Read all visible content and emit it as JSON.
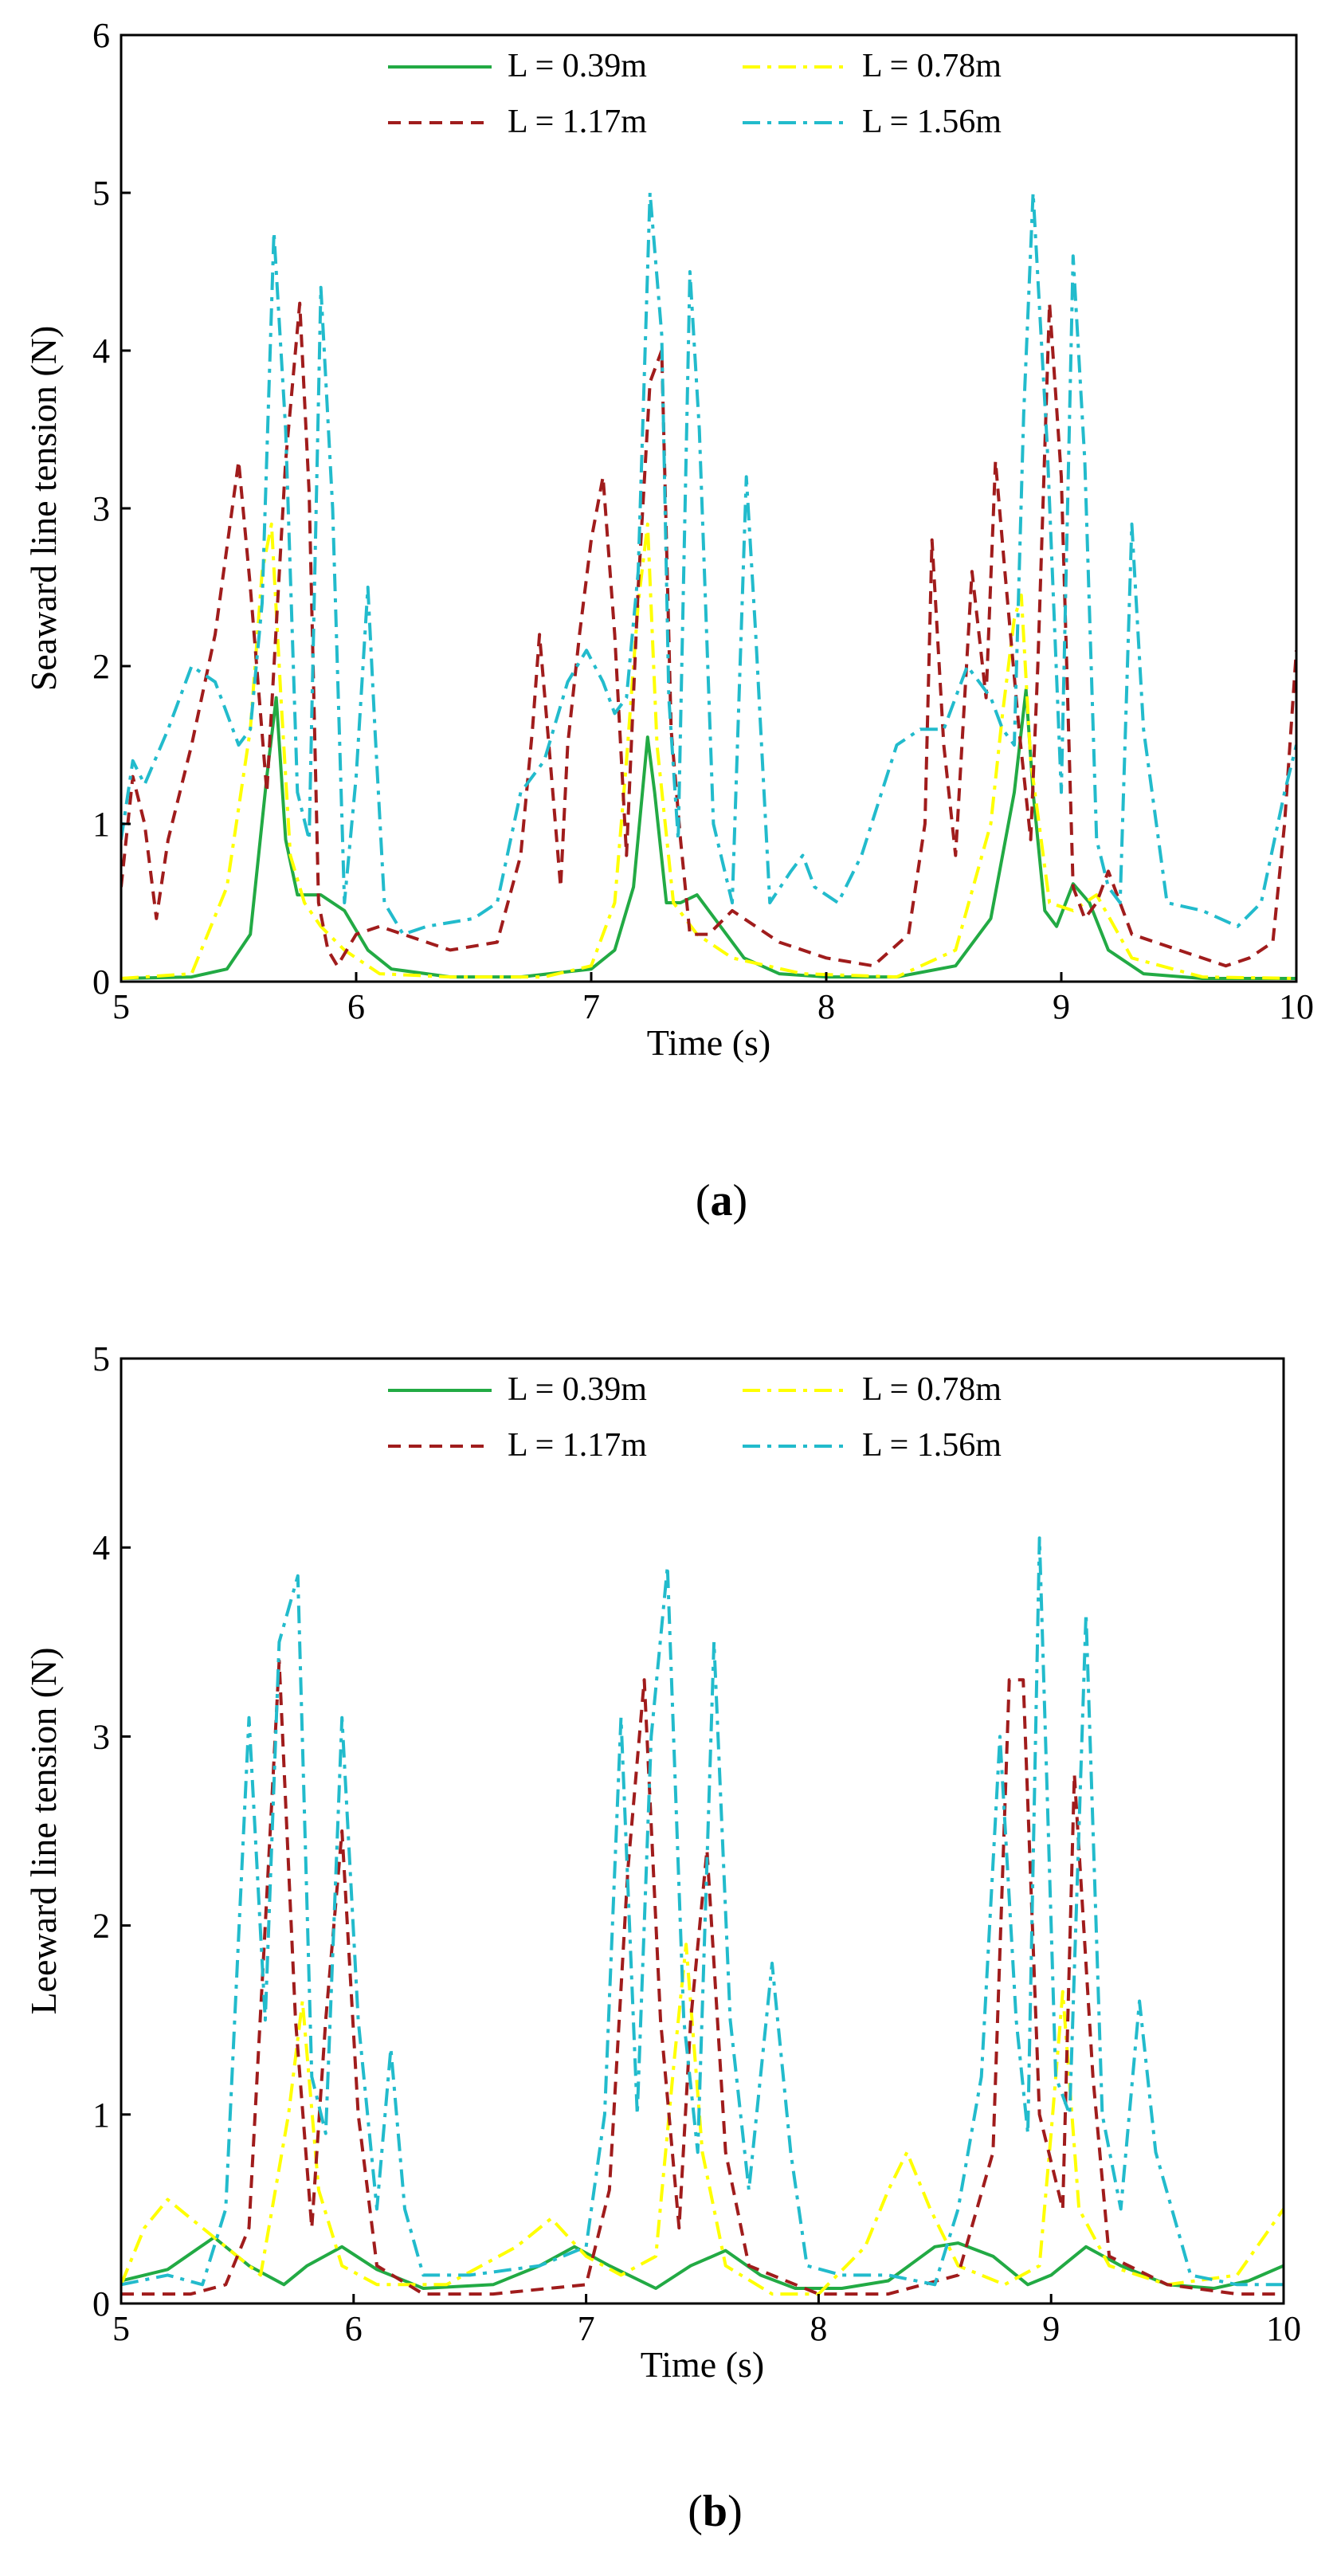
{
  "chart_data": [
    {
      "type": "line",
      "panel_label": "a",
      "xlabel": "Time (s)",
      "ylabel": "Seaward line tension (N)",
      "xlim": [
        5,
        10
      ],
      "ylim": [
        0,
        6
      ],
      "xticks": [
        5,
        6,
        7,
        8,
        9,
        10
      ],
      "yticks": [
        0,
        1,
        2,
        3,
        4,
        5,
        6
      ],
      "legend_position": "top",
      "series": [
        {
          "name": "L = 0.39m",
          "color": "#22aa44",
          "dash": "solid",
          "x": [
            5.0,
            5.3,
            5.45,
            5.55,
            5.62,
            5.66,
            5.7,
            5.75,
            5.85,
            5.95,
            6.05,
            6.15,
            6.4,
            6.7,
            7.0,
            7.1,
            7.18,
            7.24,
            7.27,
            7.32,
            7.38,
            7.45,
            7.55,
            7.65,
            7.8,
            8.0,
            8.3,
            8.55,
            8.7,
            8.8,
            8.85,
            8.88,
            8.93,
            8.98,
            9.05,
            9.12,
            9.2,
            9.35,
            9.6,
            10.0
          ],
          "values": [
            0.02,
            0.03,
            0.08,
            0.3,
            1.3,
            1.8,
            0.9,
            0.55,
            0.55,
            0.45,
            0.2,
            0.08,
            0.03,
            0.03,
            0.08,
            0.2,
            0.6,
            1.55,
            1.2,
            0.5,
            0.5,
            0.55,
            0.35,
            0.15,
            0.05,
            0.03,
            0.03,
            0.1,
            0.4,
            1.2,
            1.85,
            1.2,
            0.45,
            0.35,
            0.62,
            0.5,
            0.2,
            0.05,
            0.02,
            0.02
          ]
        },
        {
          "name": "L = 0.78m",
          "color": "#ffff00",
          "dash": "dashdot",
          "x": [
            5.0,
            5.3,
            5.45,
            5.5,
            5.55,
            5.6,
            5.64,
            5.68,
            5.72,
            5.78,
            5.85,
            5.95,
            6.1,
            6.4,
            6.8,
            7.0,
            7.1,
            7.15,
            7.2,
            7.24,
            7.28,
            7.35,
            7.45,
            7.6,
            7.9,
            8.3,
            8.55,
            8.7,
            8.75,
            8.8,
            8.83,
            8.87,
            8.95,
            9.05,
            9.15,
            9.3,
            9.6,
            10.0
          ],
          "values": [
            0.02,
            0.05,
            0.6,
            1.1,
            1.6,
            2.6,
            2.9,
            1.8,
            0.8,
            0.5,
            0.35,
            0.2,
            0.05,
            0.03,
            0.03,
            0.1,
            0.5,
            1.4,
            2.4,
            2.9,
            1.5,
            0.5,
            0.3,
            0.15,
            0.05,
            0.03,
            0.2,
            1.0,
            1.7,
            2.3,
            2.45,
            1.4,
            0.5,
            0.45,
            0.55,
            0.15,
            0.03,
            0.02
          ]
        },
        {
          "name": "L = 1.17m",
          "color": "#a01c1c",
          "dash": "dashed",
          "x": [
            5.0,
            5.05,
            5.1,
            5.15,
            5.2,
            5.3,
            5.4,
            5.5,
            5.55,
            5.62,
            5.7,
            5.76,
            5.8,
            5.84,
            5.88,
            5.92,
            6.0,
            6.1,
            6.2,
            6.4,
            6.6,
            6.7,
            6.75,
            6.78,
            6.82,
            6.87,
            6.9,
            6.95,
            7.0,
            7.05,
            7.1,
            7.15,
            7.2,
            7.25,
            7.3,
            7.34,
            7.38,
            7.42,
            7.5,
            7.6,
            7.7,
            7.8,
            8.0,
            8.2,
            8.35,
            8.42,
            8.45,
            8.5,
            8.55,
            8.62,
            8.68,
            8.72,
            8.76,
            8.82,
            8.87,
            8.9,
            8.95,
            9.0,
            9.05,
            9.1,
            9.15,
            9.2,
            9.3,
            9.5,
            9.7,
            9.8,
            9.9,
            9.95,
            10.0
          ],
          "values": [
            0.6,
            1.3,
            1.0,
            0.4,
            0.9,
            1.5,
            2.2,
            3.3,
            2.5,
            1.2,
            3.3,
            4.3,
            3.1,
            0.5,
            0.2,
            0.1,
            0.3,
            0.35,
            0.3,
            0.2,
            0.25,
            0.8,
            1.6,
            2.2,
            1.5,
            0.6,
            1.5,
            2.2,
            2.8,
            3.2,
            2.2,
            0.8,
            2.5,
            3.8,
            4.0,
            1.6,
            0.9,
            0.3,
            0.3,
            0.45,
            0.35,
            0.25,
            0.15,
            0.1,
            0.3,
            1.0,
            2.8,
            1.5,
            0.8,
            2.6,
            1.8,
            3.3,
            2.6,
            1.6,
            0.9,
            2.0,
            4.3,
            3.2,
            0.6,
            0.4,
            0.5,
            0.7,
            0.3,
            0.2,
            0.1,
            0.15,
            0.25,
            1.0,
            2.1
          ]
        },
        {
          "name": "L = 1.56m",
          "color": "#22bbcc",
          "dash": "dashdot",
          "x": [
            5.0,
            5.05,
            5.1,
            5.2,
            5.3,
            5.4,
            5.45,
            5.5,
            5.55,
            5.6,
            5.65,
            5.7,
            5.75,
            5.8,
            5.85,
            5.9,
            5.95,
            6.0,
            6.05,
            6.08,
            6.12,
            6.2,
            6.3,
            6.5,
            6.6,
            6.7,
            6.8,
            6.9,
            6.98,
            7.05,
            7.1,
            7.15,
            7.2,
            7.25,
            7.3,
            7.33,
            7.37,
            7.42,
            7.46,
            7.52,
            7.6,
            7.66,
            7.7,
            7.76,
            7.85,
            7.9,
            7.95,
            8.05,
            8.15,
            8.3,
            8.4,
            8.5,
            8.6,
            8.7,
            8.75,
            8.8,
            8.84,
            8.88,
            8.94,
            9.0,
            9.05,
            9.1,
            9.15,
            9.2,
            9.25,
            9.3,
            9.35,
            9.45,
            9.6,
            9.75,
            9.85,
            9.95,
            10.0
          ],
          "values": [
            0.9,
            1.4,
            1.25,
            1.6,
            2.0,
            1.9,
            1.7,
            1.5,
            1.6,
            2.4,
            4.75,
            3.5,
            1.2,
            0.9,
            4.4,
            3.0,
            0.5,
            1.3,
            2.5,
            1.6,
            0.5,
            0.3,
            0.35,
            0.4,
            0.5,
            1.2,
            1.4,
            1.9,
            2.1,
            1.9,
            1.7,
            1.8,
            2.6,
            5.0,
            4.1,
            1.8,
            0.9,
            4.5,
            3.5,
            1.0,
            0.5,
            3.2,
            2.2,
            0.5,
            0.7,
            0.8,
            0.6,
            0.5,
            0.8,
            1.5,
            1.6,
            1.6,
            2.0,
            1.8,
            1.6,
            1.5,
            3.6,
            5.0,
            3.4,
            1.2,
            4.6,
            3.3,
            0.9,
            0.6,
            0.5,
            2.9,
            1.6,
            0.5,
            0.45,
            0.35,
            0.5,
            1.2,
            1.5
          ]
        }
      ]
    },
    {
      "type": "line",
      "panel_label": "b",
      "xlabel": "Time (s)",
      "ylabel": "Leeward line tension (N)",
      "xlim": [
        5,
        10
      ],
      "ylim": [
        0,
        5
      ],
      "xticks": [
        5,
        6,
        7,
        8,
        9,
        10
      ],
      "yticks": [
        0,
        1,
        2,
        3,
        4,
        5
      ],
      "legend_position": "top",
      "series": [
        {
          "name": "L = 0.39m",
          "color": "#22aa44",
          "dash": "solid",
          "x": [
            5.0,
            5.2,
            5.4,
            5.55,
            5.7,
            5.8,
            5.95,
            6.1,
            6.3,
            6.6,
            6.8,
            6.95,
            7.1,
            7.3,
            7.45,
            7.6,
            7.75,
            7.9,
            8.1,
            8.3,
            8.5,
            8.6,
            8.75,
            8.9,
            9.0,
            9.15,
            9.3,
            9.5,
            9.7,
            9.85,
            10.0
          ],
          "values": [
            0.12,
            0.18,
            0.35,
            0.2,
            0.1,
            0.2,
            0.3,
            0.18,
            0.08,
            0.1,
            0.2,
            0.3,
            0.2,
            0.08,
            0.2,
            0.28,
            0.15,
            0.08,
            0.08,
            0.12,
            0.3,
            0.32,
            0.25,
            0.1,
            0.15,
            0.3,
            0.2,
            0.1,
            0.08,
            0.12,
            0.2
          ]
        },
        {
          "name": "L = 0.78m",
          "color": "#ffff00",
          "dash": "dashdot",
          "x": [
            5.0,
            5.1,
            5.2,
            5.3,
            5.45,
            5.6,
            5.72,
            5.78,
            5.85,
            5.95,
            6.1,
            6.4,
            6.7,
            6.85,
            7.0,
            7.15,
            7.3,
            7.38,
            7.43,
            7.5,
            7.6,
            7.8,
            8.0,
            8.2,
            8.3,
            8.38,
            8.48,
            8.6,
            8.8,
            8.95,
            9.0,
            9.05,
            9.12,
            9.25,
            9.5,
            9.8,
            10.0
          ],
          "values": [
            0.1,
            0.4,
            0.55,
            0.45,
            0.3,
            0.15,
            1.0,
            1.6,
            0.6,
            0.2,
            0.1,
            0.1,
            0.3,
            0.45,
            0.25,
            0.15,
            0.25,
            1.3,
            1.9,
            0.8,
            0.2,
            0.05,
            0.05,
            0.3,
            0.6,
            0.8,
            0.5,
            0.2,
            0.1,
            0.2,
            0.9,
            1.65,
            0.5,
            0.2,
            0.1,
            0.15,
            0.5
          ]
        },
        {
          "name": "L = 1.17m",
          "color": "#a01c1c",
          "dash": "dashed",
          "x": [
            5.0,
            5.3,
            5.45,
            5.55,
            5.62,
            5.68,
            5.75,
            5.82,
            5.88,
            5.95,
            6.02,
            6.1,
            6.3,
            6.6,
            7.0,
            7.1,
            7.18,
            7.25,
            7.32,
            7.4,
            7.45,
            7.52,
            7.6,
            7.7,
            8.0,
            8.3,
            8.6,
            8.75,
            8.82,
            8.88,
            8.95,
            9.05,
            9.1,
            9.18,
            9.25,
            9.5,
            9.8,
            10.0
          ],
          "values": [
            0.05,
            0.05,
            0.1,
            0.4,
            2.0,
            3.4,
            1.5,
            0.4,
            1.5,
            2.5,
            1.0,
            0.2,
            0.05,
            0.05,
            0.1,
            0.6,
            2.3,
            3.3,
            1.5,
            0.4,
            1.5,
            2.4,
            0.8,
            0.2,
            0.05,
            0.05,
            0.15,
            0.8,
            3.3,
            3.3,
            1.0,
            0.5,
            2.8,
            1.2,
            0.25,
            0.1,
            0.05,
            0.05
          ]
        },
        {
          "name": "L = 1.56m",
          "color": "#22bbcc",
          "dash": "dashdot",
          "x": [
            5.0,
            5.2,
            5.35,
            5.45,
            5.55,
            5.62,
            5.68,
            5.76,
            5.82,
            5.88,
            5.95,
            6.02,
            6.1,
            6.16,
            6.22,
            6.3,
            6.5,
            6.8,
            7.0,
            7.08,
            7.15,
            7.22,
            7.28,
            7.35,
            7.42,
            7.48,
            7.55,
            7.62,
            7.7,
            7.8,
            7.88,
            7.95,
            8.1,
            8.3,
            8.5,
            8.6,
            8.7,
            8.78,
            8.85,
            8.9,
            8.95,
            9.02,
            9.08,
            9.15,
            9.22,
            9.3,
            9.38,
            9.45,
            9.6,
            9.8,
            10.0
          ],
          "values": [
            0.1,
            0.15,
            0.1,
            0.5,
            3.1,
            1.5,
            3.5,
            3.85,
            1.2,
            0.9,
            3.1,
            1.5,
            0.5,
            1.35,
            0.5,
            0.15,
            0.15,
            0.2,
            0.3,
            1.0,
            3.1,
            1.0,
            3.0,
            3.9,
            1.5,
            0.8,
            3.5,
            1.5,
            0.6,
            1.8,
            0.8,
            0.2,
            0.15,
            0.15,
            0.1,
            0.5,
            1.2,
            3.0,
            1.5,
            0.9,
            4.05,
            1.2,
            1.0,
            3.65,
            1.0,
            0.5,
            1.6,
            0.8,
            0.15,
            0.1,
            0.1
          ]
        }
      ]
    }
  ]
}
